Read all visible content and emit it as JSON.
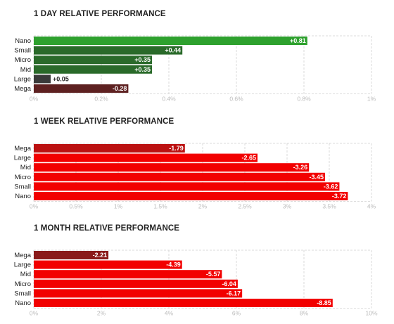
{
  "chart_data": [
    {
      "type": "bar",
      "orientation": "horizontal",
      "title": "1 DAY RELATIVE PERFORMANCE",
      "categories": [
        "Nano",
        "Small",
        "Micro",
        "Mid",
        "Large",
        "Mega"
      ],
      "values": [
        0.81,
        0.44,
        0.35,
        0.35,
        0.05,
        -0.28
      ],
      "value_labels": [
        "+0.81",
        "+0.44",
        "+0.35",
        "+0.35",
        "+0.05",
        "-0.28"
      ],
      "bar_colors": [
        "#2ea12e",
        "#2a6a2a",
        "#2a6a2a",
        "#2a6a2a",
        "#3a3a3a",
        "#5e2121"
      ],
      "xlim": [
        0,
        1
      ],
      "ticks": [
        0,
        0.2,
        0.4,
        0.6,
        0.8,
        1
      ],
      "tick_labels": [
        "0%",
        "0.2%",
        "0.4%",
        "0.6%",
        "0.8%",
        "1%"
      ],
      "bar_magnitude": "absolute",
      "grid": true,
      "xlabel": "",
      "ylabel": ""
    },
    {
      "type": "bar",
      "orientation": "horizontal",
      "title": "1 WEEK RELATIVE PERFORMANCE",
      "categories": [
        "Mega",
        "Large",
        "Mid",
        "Micro",
        "Small",
        "Nano"
      ],
      "values": [
        -1.79,
        -2.65,
        -3.26,
        -3.45,
        -3.62,
        -3.72
      ],
      "value_labels": [
        "-1.79",
        "-2.65",
        "-3.26",
        "-3.45",
        "-3.62",
        "-3.72"
      ],
      "bar_colors": [
        "#bb1111",
        "#f20000",
        "#f20000",
        "#f20000",
        "#f20000",
        "#f20000"
      ],
      "xlim": [
        0,
        4
      ],
      "ticks": [
        0,
        0.5,
        1,
        1.5,
        2,
        2.5,
        3,
        3.5,
        4
      ],
      "tick_labels": [
        "0%",
        "0.5%",
        "1%",
        "1.5%",
        "2%",
        "2.5%",
        "3%",
        "3.5%",
        "4%"
      ],
      "bar_magnitude": "absolute",
      "grid": true,
      "xlabel": "",
      "ylabel": ""
    },
    {
      "type": "bar",
      "orientation": "horizontal",
      "title": "1 MONTH RELATIVE PERFORMANCE",
      "categories": [
        "Mega",
        "Large",
        "Mid",
        "Micro",
        "Small",
        "Nano"
      ],
      "values": [
        -2.21,
        -4.39,
        -5.57,
        -6.04,
        -6.17,
        -8.85
      ],
      "value_labels": [
        "-2.21",
        "-4.39",
        "-5.57",
        "-6.04",
        "-6.17",
        "-8.85"
      ],
      "bar_colors": [
        "#8a1a1a",
        "#f20000",
        "#f20000",
        "#f20000",
        "#f20000",
        "#f20000"
      ],
      "xlim": [
        0,
        10
      ],
      "ticks": [
        0,
        2,
        4,
        6,
        8,
        10
      ],
      "tick_labels": [
        "0%",
        "2%",
        "4%",
        "6%",
        "8%",
        "10%"
      ],
      "bar_magnitude": "absolute",
      "grid": true,
      "xlabel": "",
      "ylabel": ""
    }
  ],
  "colors": {
    "grid": "#d0d0d0",
    "category_text": "#222222",
    "tick_text": "#bbbbbb",
    "value_text_inside": "#ffffff",
    "value_text_outside": "#222222"
  }
}
